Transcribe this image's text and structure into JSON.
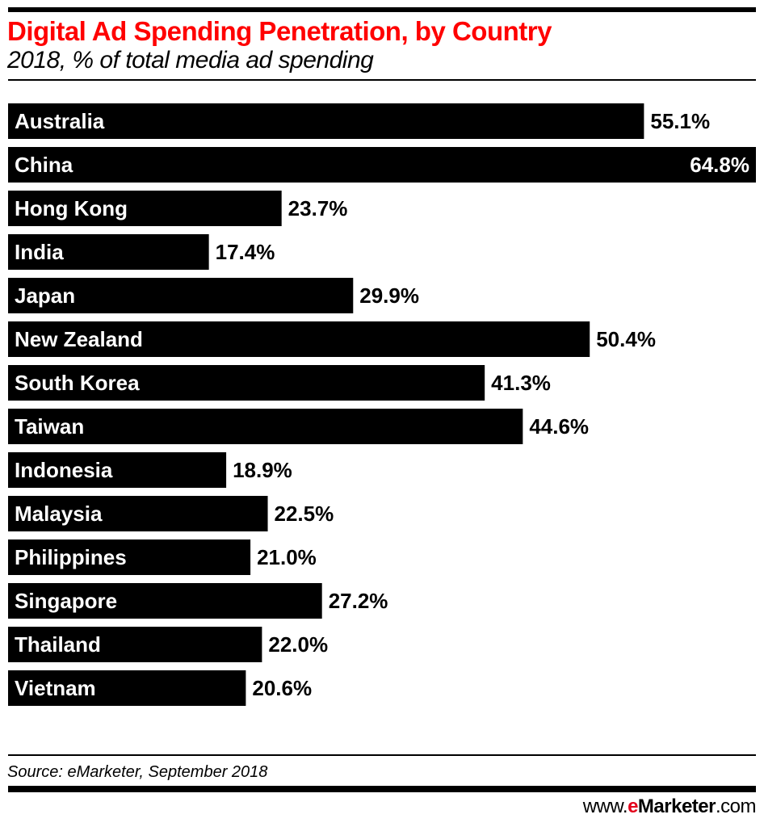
{
  "chart_data": {
    "type": "bar",
    "orientation": "horizontal",
    "title": "Digital Ad Spending Penetration, by Country",
    "subtitle": "2018, % of total media ad spending",
    "categories": [
      "Australia",
      "China",
      "Hong Kong",
      "India",
      "Japan",
      "New Zealand",
      "South Korea",
      "Taiwan",
      "Indonesia",
      "Malaysia",
      "Philippines",
      "Singapore",
      "Thailand",
      "Vietnam"
    ],
    "values": [
      55.1,
      64.8,
      23.7,
      17.4,
      29.9,
      50.4,
      41.3,
      44.6,
      18.9,
      22.5,
      21.0,
      27.2,
      22.0,
      20.6
    ],
    "value_labels": [
      "55.1%",
      "64.8%",
      "23.7%",
      "17.4%",
      "29.9%",
      "50.4%",
      "41.3%",
      "44.6%",
      "18.9%",
      "22.5%",
      "21.0%",
      "27.2%",
      "22.0%",
      "20.6%"
    ],
    "xlim": [
      0,
      64.8
    ],
    "grid": false,
    "colors": {
      "bar": "#000000",
      "title": "#ff0000",
      "label_inside": "#ffffff"
    }
  },
  "footer": {
    "source": "Source: eMarketer, September 2018",
    "site_prefix": "www.",
    "site_e": "e",
    "site_brand": "Marketer",
    "site_suffix": ".com"
  }
}
